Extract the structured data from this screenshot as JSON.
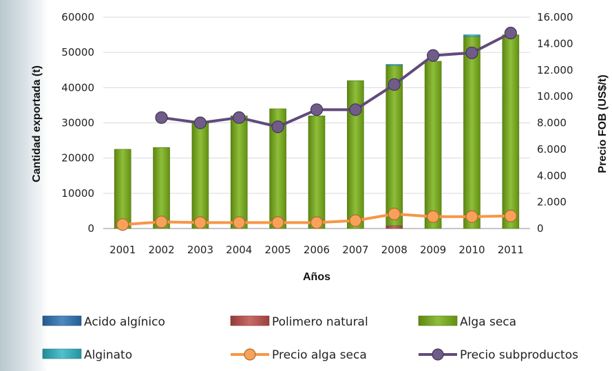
{
  "chart_data": {
    "type": "bar",
    "categories": [
      "2001",
      "2002",
      "2003",
      "2004",
      "2005",
      "2006",
      "2007",
      "2008",
      "2009",
      "2010",
      "2011"
    ],
    "ylabel": "Cantidad exportada (t)",
    "y2label": "Precio FOB (US$/t)",
    "xlabel": "Años",
    "ylim": [
      0,
      60000
    ],
    "y2lim": [
      0,
      16000
    ],
    "y_ticks": [
      "0",
      "10000",
      "20000",
      "30000",
      "40000",
      "50000",
      "60000"
    ],
    "y2_ticks": [
      "0",
      "2.000",
      "4.000",
      "6.000",
      "8.000",
      "10.000",
      "12.000",
      "14.000",
      "16.000"
    ],
    "stacked": true,
    "series": [
      {
        "name": "Acido algínico",
        "kind": "bar",
        "axis": "left",
        "color": "#2e75b6",
        "values": [
          0,
          0,
          0,
          0,
          0,
          0,
          0,
          0,
          0,
          0,
          0
        ]
      },
      {
        "name": "Polimero natural",
        "kind": "bar",
        "axis": "left",
        "color": "#c0504d",
        "values": [
          0,
          0,
          0,
          0,
          0,
          0,
          0,
          800,
          0,
          0,
          0
        ]
      },
      {
        "name": "Alga seca",
        "kind": "bar",
        "axis": "left",
        "color": "#7ab317",
        "values": [
          22500,
          23000,
          30000,
          32000,
          34000,
          32000,
          42000,
          45500,
          47500,
          54500,
          55000
        ]
      },
      {
        "name": "Alginato",
        "kind": "bar",
        "axis": "left",
        "color": "#31b6c8",
        "values": [
          0,
          0,
          0,
          0,
          0,
          0,
          0,
          300,
          0,
          500,
          0
        ]
      },
      {
        "name": "Precio alga seca",
        "kind": "line",
        "axis": "right",
        "color": "#f79646",
        "values": [
          300,
          500,
          450,
          450,
          450,
          450,
          600,
          1100,
          900,
          900,
          950
        ]
      },
      {
        "name": "Precio subproductos",
        "kind": "line",
        "axis": "right",
        "color": "#604a7b",
        "values": [
          null,
          8400,
          8000,
          8400,
          7700,
          9000,
          9000,
          10900,
          13100,
          13300,
          14800
        ]
      }
    ]
  }
}
